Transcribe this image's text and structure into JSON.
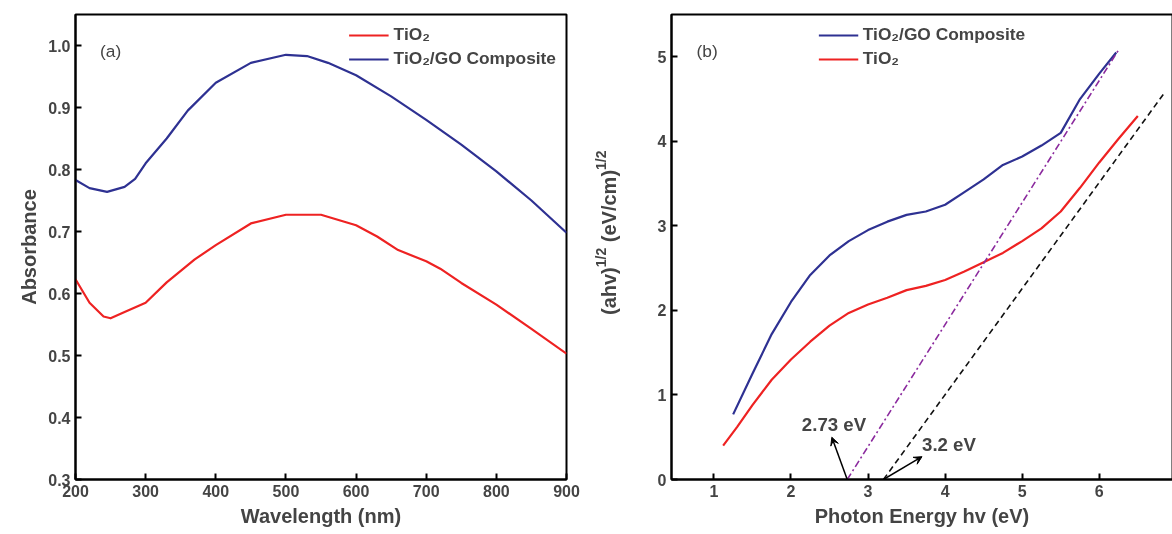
{
  "chart_data": [
    {
      "type": "line",
      "xlabel": "Wavelength (nm)",
      "ylabel": "Absorbance",
      "xlim": [
        200,
        900
      ],
      "ylim": [
        0.3,
        1.05
      ],
      "xticks": [
        200,
        300,
        400,
        500,
        600,
        700,
        800,
        900
      ],
      "yticks": [
        0.3,
        0.4,
        0.5,
        0.6,
        0.7,
        0.8,
        0.9,
        {
          "value": 1.0,
          "label": "1.0"
        }
      ],
      "grid": false,
      "legend": "top right",
      "annotations": [
        "(a)"
      ],
      "series": [
        {
          "name": "TiO₂",
          "color": "#ee2222",
          "x": [
            200,
            220,
            240,
            250,
            270,
            300,
            330,
            370,
            400,
            450,
            500,
            550,
            600,
            630,
            660,
            700,
            720,
            750,
            800,
            850,
            900
          ],
          "values": [
            0.623,
            0.585,
            0.563,
            0.56,
            0.57,
            0.585,
            0.618,
            0.655,
            0.678,
            0.713,
            0.727,
            0.727,
            0.71,
            0.692,
            0.67,
            0.652,
            0.64,
            0.617,
            0.582,
            0.543,
            0.503
          ]
        },
        {
          "name": "TiO₂/GO Composite",
          "color": "#2e3192",
          "x": [
            200,
            220,
            245,
            270,
            285,
            300,
            330,
            360,
            400,
            450,
            500,
            530,
            560,
            600,
            650,
            700,
            750,
            800,
            850,
            900
          ],
          "values": [
            0.783,
            0.77,
            0.764,
            0.772,
            0.785,
            0.81,
            0.85,
            0.895,
            0.94,
            0.972,
            0.985,
            0.983,
            0.972,
            0.952,
            0.918,
            0.88,
            0.84,
            0.797,
            0.75,
            0.698
          ]
        }
      ]
    },
    {
      "type": "line",
      "xlabel": "Photon Energy hv (eV)",
      "ylabel": "(ahv)$^{1/2}$ (eV/cm)$^{1/2}$",
      "xlim": [
        0.45,
        6.95
      ],
      "ylim": [
        0,
        5.5
      ],
      "xticks": [
        1,
        2,
        3,
        4,
        5,
        6
      ],
      "yticks": [
        0,
        1,
        2,
        3,
        4,
        5
      ],
      "grid": false,
      "legend": "top",
      "annotations": [
        "(b)",
        {
          "text": "2.73 eV",
          "x": 2.73,
          "y": 0
        },
        {
          "text": "3.2 eV",
          "x": 3.2,
          "y": 0
        }
      ],
      "series": [
        {
          "name": "TiO₂/GO Composite",
          "color": "#2e3192",
          "x": [
            1.25,
            1.5,
            1.75,
            2.0,
            2.25,
            2.5,
            2.75,
            3.0,
            3.25,
            3.5,
            3.75,
            4.0,
            4.25,
            4.5,
            4.75,
            5.0,
            5.25,
            5.5,
            5.75,
            6.0,
            6.22
          ],
          "values": [
            0.77,
            1.25,
            1.72,
            2.1,
            2.42,
            2.65,
            2.82,
            2.95,
            3.05,
            3.13,
            3.17,
            3.25,
            3.4,
            3.55,
            3.72,
            3.82,
            3.95,
            4.1,
            4.5,
            4.8,
            5.05
          ]
        },
        {
          "name": "TiO₂",
          "color": "#ee2222",
          "x": [
            1.12,
            1.3,
            1.5,
            1.75,
            2.0,
            2.25,
            2.5,
            2.75,
            3.0,
            3.25,
            3.5,
            3.75,
            4.0,
            4.25,
            4.5,
            4.75,
            5.0,
            5.25,
            5.5,
            5.75,
            6.0,
            6.25,
            6.5
          ],
          "values": [
            0.4,
            0.62,
            0.88,
            1.18,
            1.42,
            1.63,
            1.82,
            1.97,
            2.07,
            2.15,
            2.24,
            2.29,
            2.36,
            2.46,
            2.57,
            2.68,
            2.82,
            2.97,
            3.17,
            3.45,
            3.75,
            4.03,
            4.3
          ]
        },
        {
          "color": "#8b2a9e",
          "line_style": "dashdot",
          "x": [
            2.73,
            6.25
          ],
          "values": [
            0,
            5.08
          ]
        },
        {
          "color": "#111111",
          "line_style": "dashed",
          "x": [
            3.2,
            6.85
          ],
          "values": [
            0,
            4.58
          ]
        }
      ]
    }
  ]
}
